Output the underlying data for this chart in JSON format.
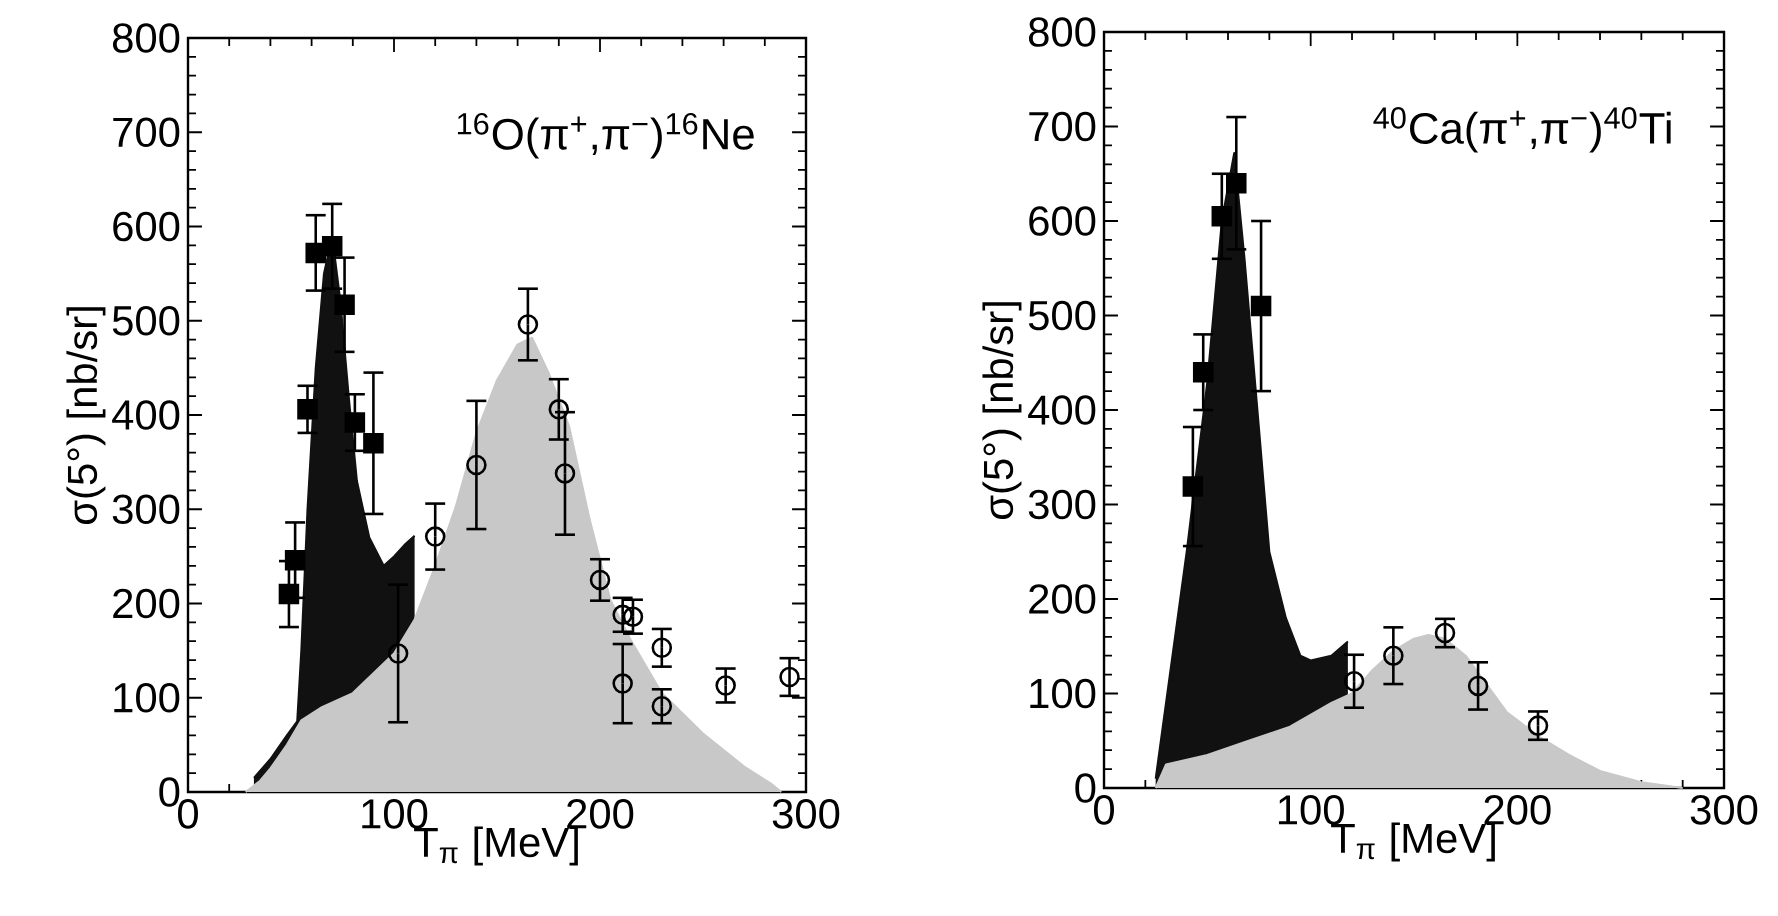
{
  "chart_data": [
    {
      "type": "area",
      "xlabel": "T$_{π}$   [MeV]",
      "ylabel": "σ(5°)   [nb/sr]",
      "annotations": [
        "$^{16}$O(π$^{+}$,π$^{−}$)$^{16}$Ne"
      ],
      "xlim": [
        0,
        300
      ],
      "ylim": [
        0,
        800
      ],
      "xticks": [
        0,
        100,
        200,
        300
      ],
      "yticks": [
        0,
        100,
        200,
        300,
        400,
        500,
        600,
        700,
        800
      ],
      "series": [
        {
          "type": "area",
          "color": "#111111",
          "x": [
            32,
            40,
            48,
            53,
            55,
            58,
            62,
            66,
            70,
            74,
            78,
            82,
            88,
            95,
            100,
            105,
            110
          ],
          "values": [
            15,
            35,
            60,
            75,
            150,
            300,
            450,
            550,
            590,
            520,
            420,
            330,
            270,
            240,
            250,
            262,
            272
          ]
        },
        {
          "type": "area",
          "color": "#c8c8c8",
          "x": [
            28,
            35,
            40,
            48,
            55,
            65,
            80,
            100,
            110,
            120,
            130,
            140,
            150,
            160,
            167,
            175,
            185,
            195,
            205,
            215,
            230,
            250,
            270,
            283,
            288
          ],
          "values": [
            0,
            12,
            25,
            50,
            76,
            90,
            105,
            147,
            183,
            240,
            303,
            381,
            437,
            475,
            482,
            445,
            388,
            289,
            204,
            161,
            105,
            62,
            27,
            9,
            0
          ]
        },
        {
          "type": "scatter",
          "marker": "square",
          "color": "#000000",
          "x": [
            49,
            52,
            58,
            62,
            70,
            76,
            81,
            90
          ],
          "values": [
            210,
            246,
            406,
            572,
            579,
            517,
            392,
            370
          ],
          "errors": [
            35,
            40,
            25,
            40,
            45,
            50,
            30,
            75
          ]
        },
        {
          "type": "scatter",
          "marker": "circle",
          "color": "#000000",
          "x": [
            102,
            120,
            140,
            165,
            180,
            183,
            200,
            211,
            216,
            211,
            230,
            230,
            261,
            292
          ],
          "values": [
            147,
            271,
            347,
            496,
            406,
            338,
            225,
            188,
            186,
            115,
            153,
            91,
            113,
            122
          ],
          "errors": [
            73,
            35,
            68,
            38,
            32,
            65,
            22,
            18,
            18,
            42,
            20,
            18,
            18,
            20
          ]
        }
      ]
    },
    {
      "type": "area",
      "xlabel": "T$_{π}$   [MeV]",
      "ylabel": "σ(5°)   [nb/sr]",
      "annotations": [
        "$^{40}$Ca(π$^{+}$,π$^{−}$)$^{40}$Ti"
      ],
      "xlim": [
        0,
        300
      ],
      "ylim": [
        0,
        800
      ],
      "xticks": [
        0,
        100,
        200,
        300
      ],
      "yticks": [
        0,
        100,
        200,
        300,
        400,
        500,
        600,
        700,
        800
      ],
      "series": [
        {
          "type": "area",
          "color": "#111111",
          "x": [
            25,
            30,
            40,
            50,
            57,
            63,
            68,
            75,
            80,
            88,
            95,
            100,
            110,
            118
          ],
          "values": [
            10,
            90,
            250,
            430,
            600,
            672,
            560,
            380,
            250,
            180,
            140,
            135,
            140,
            155
          ]
        },
        {
          "type": "area",
          "color": "#c8c8c8",
          "x": [
            25,
            30,
            50,
            70,
            90,
            110,
            120,
            130,
            140,
            150,
            157,
            165,
            175,
            185,
            195,
            210,
            225,
            240,
            260,
            280
          ],
          "values": [
            0,
            25,
            35,
            50,
            65,
            90,
            100,
            125,
            145,
            158,
            162,
            158,
            140,
            110,
            80,
            55,
            35,
            18,
            6,
            0
          ]
        },
        {
          "type": "scatter",
          "marker": "square",
          "color": "#000000",
          "x": [
            43,
            48,
            57,
            64,
            76
          ],
          "values": [
            319,
            440,
            605,
            640,
            510
          ],
          "errors": [
            63,
            40,
            45,
            70,
            90
          ]
        },
        {
          "type": "scatter",
          "marker": "circle",
          "color": "#000000",
          "x": [
            121,
            140,
            165,
            181,
            210
          ],
          "values": [
            113,
            140,
            164,
            108,
            66
          ],
          "errors": [
            28,
            30,
            15,
            25,
            15
          ]
        }
      ]
    }
  ]
}
